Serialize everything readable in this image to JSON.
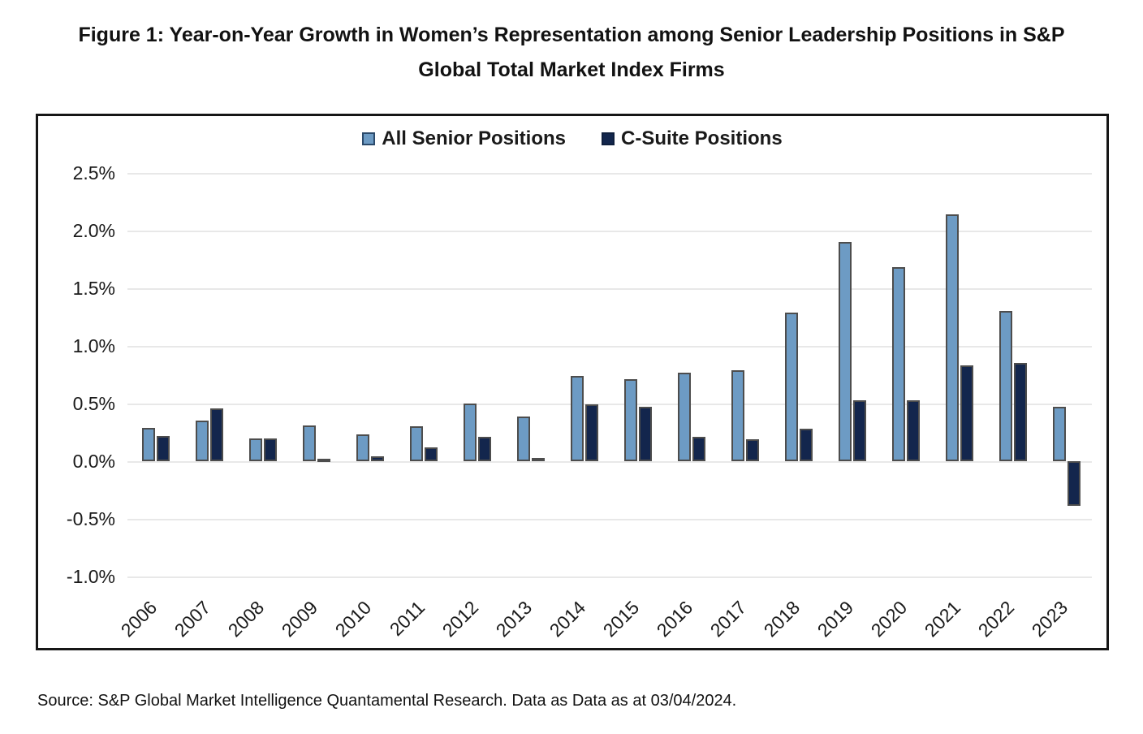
{
  "title": {
    "line1": "Figure 1: Year-on-Year Growth in Women’s Representation among Senior Leadership Positions in S&P",
    "line2": "Global Total Market Index Firms"
  },
  "legend": {
    "items": [
      {
        "label": "All Senior Positions",
        "color": "#6D9BC4",
        "swatch_border": "#2b4a6b"
      },
      {
        "label": "C-Suite Positions",
        "color": "#13264D",
        "swatch_border": "#0f1f3d"
      }
    ]
  },
  "source": "Source: S&P Global Market Intelligence Quantamental Research. Data as Data as at 03/04/2024.",
  "chart_data": {
    "type": "bar",
    "title": "Figure 1: Year-on-Year Growth in Women’s Representation among Senior Leadership Positions in S&P Global Total Market Index Firms",
    "categories": [
      "2006",
      "2007",
      "2008",
      "2009",
      "2010",
      "2011",
      "2012",
      "2013",
      "2014",
      "2015",
      "2016",
      "2017",
      "2018",
      "2019",
      "2020",
      "2021",
      "2022",
      "2023"
    ],
    "series": [
      {
        "name": "All Senior Positions",
        "color": "#6D9BC4",
        "values": [
          0.29,
          0.35,
          0.2,
          0.31,
          0.23,
          0.3,
          0.5,
          0.39,
          0.74,
          0.71,
          0.77,
          0.79,
          1.29,
          1.9,
          1.68,
          2.14,
          1.3,
          0.47
        ]
      },
      {
        "name": "C-Suite Positions",
        "color": "#13264D",
        "values": [
          0.22,
          0.46,
          0.2,
          0.02,
          0.04,
          0.12,
          0.21,
          0.03,
          0.49,
          0.47,
          0.21,
          0.19,
          0.28,
          0.53,
          0.53,
          0.83,
          0.85,
          -0.39
        ]
      }
    ],
    "xlabel": "",
    "ylabel": "",
    "y_ticks": [
      "2.5%",
      "2.0%",
      "1.5%",
      "1.0%",
      "0.5%",
      "0.0%",
      "-0.5%",
      "-1.0%"
    ],
    "ylim": [
      -1.0,
      2.5
    ],
    "unit": "percent",
    "grid": true,
    "legend_position": "top-center"
  }
}
